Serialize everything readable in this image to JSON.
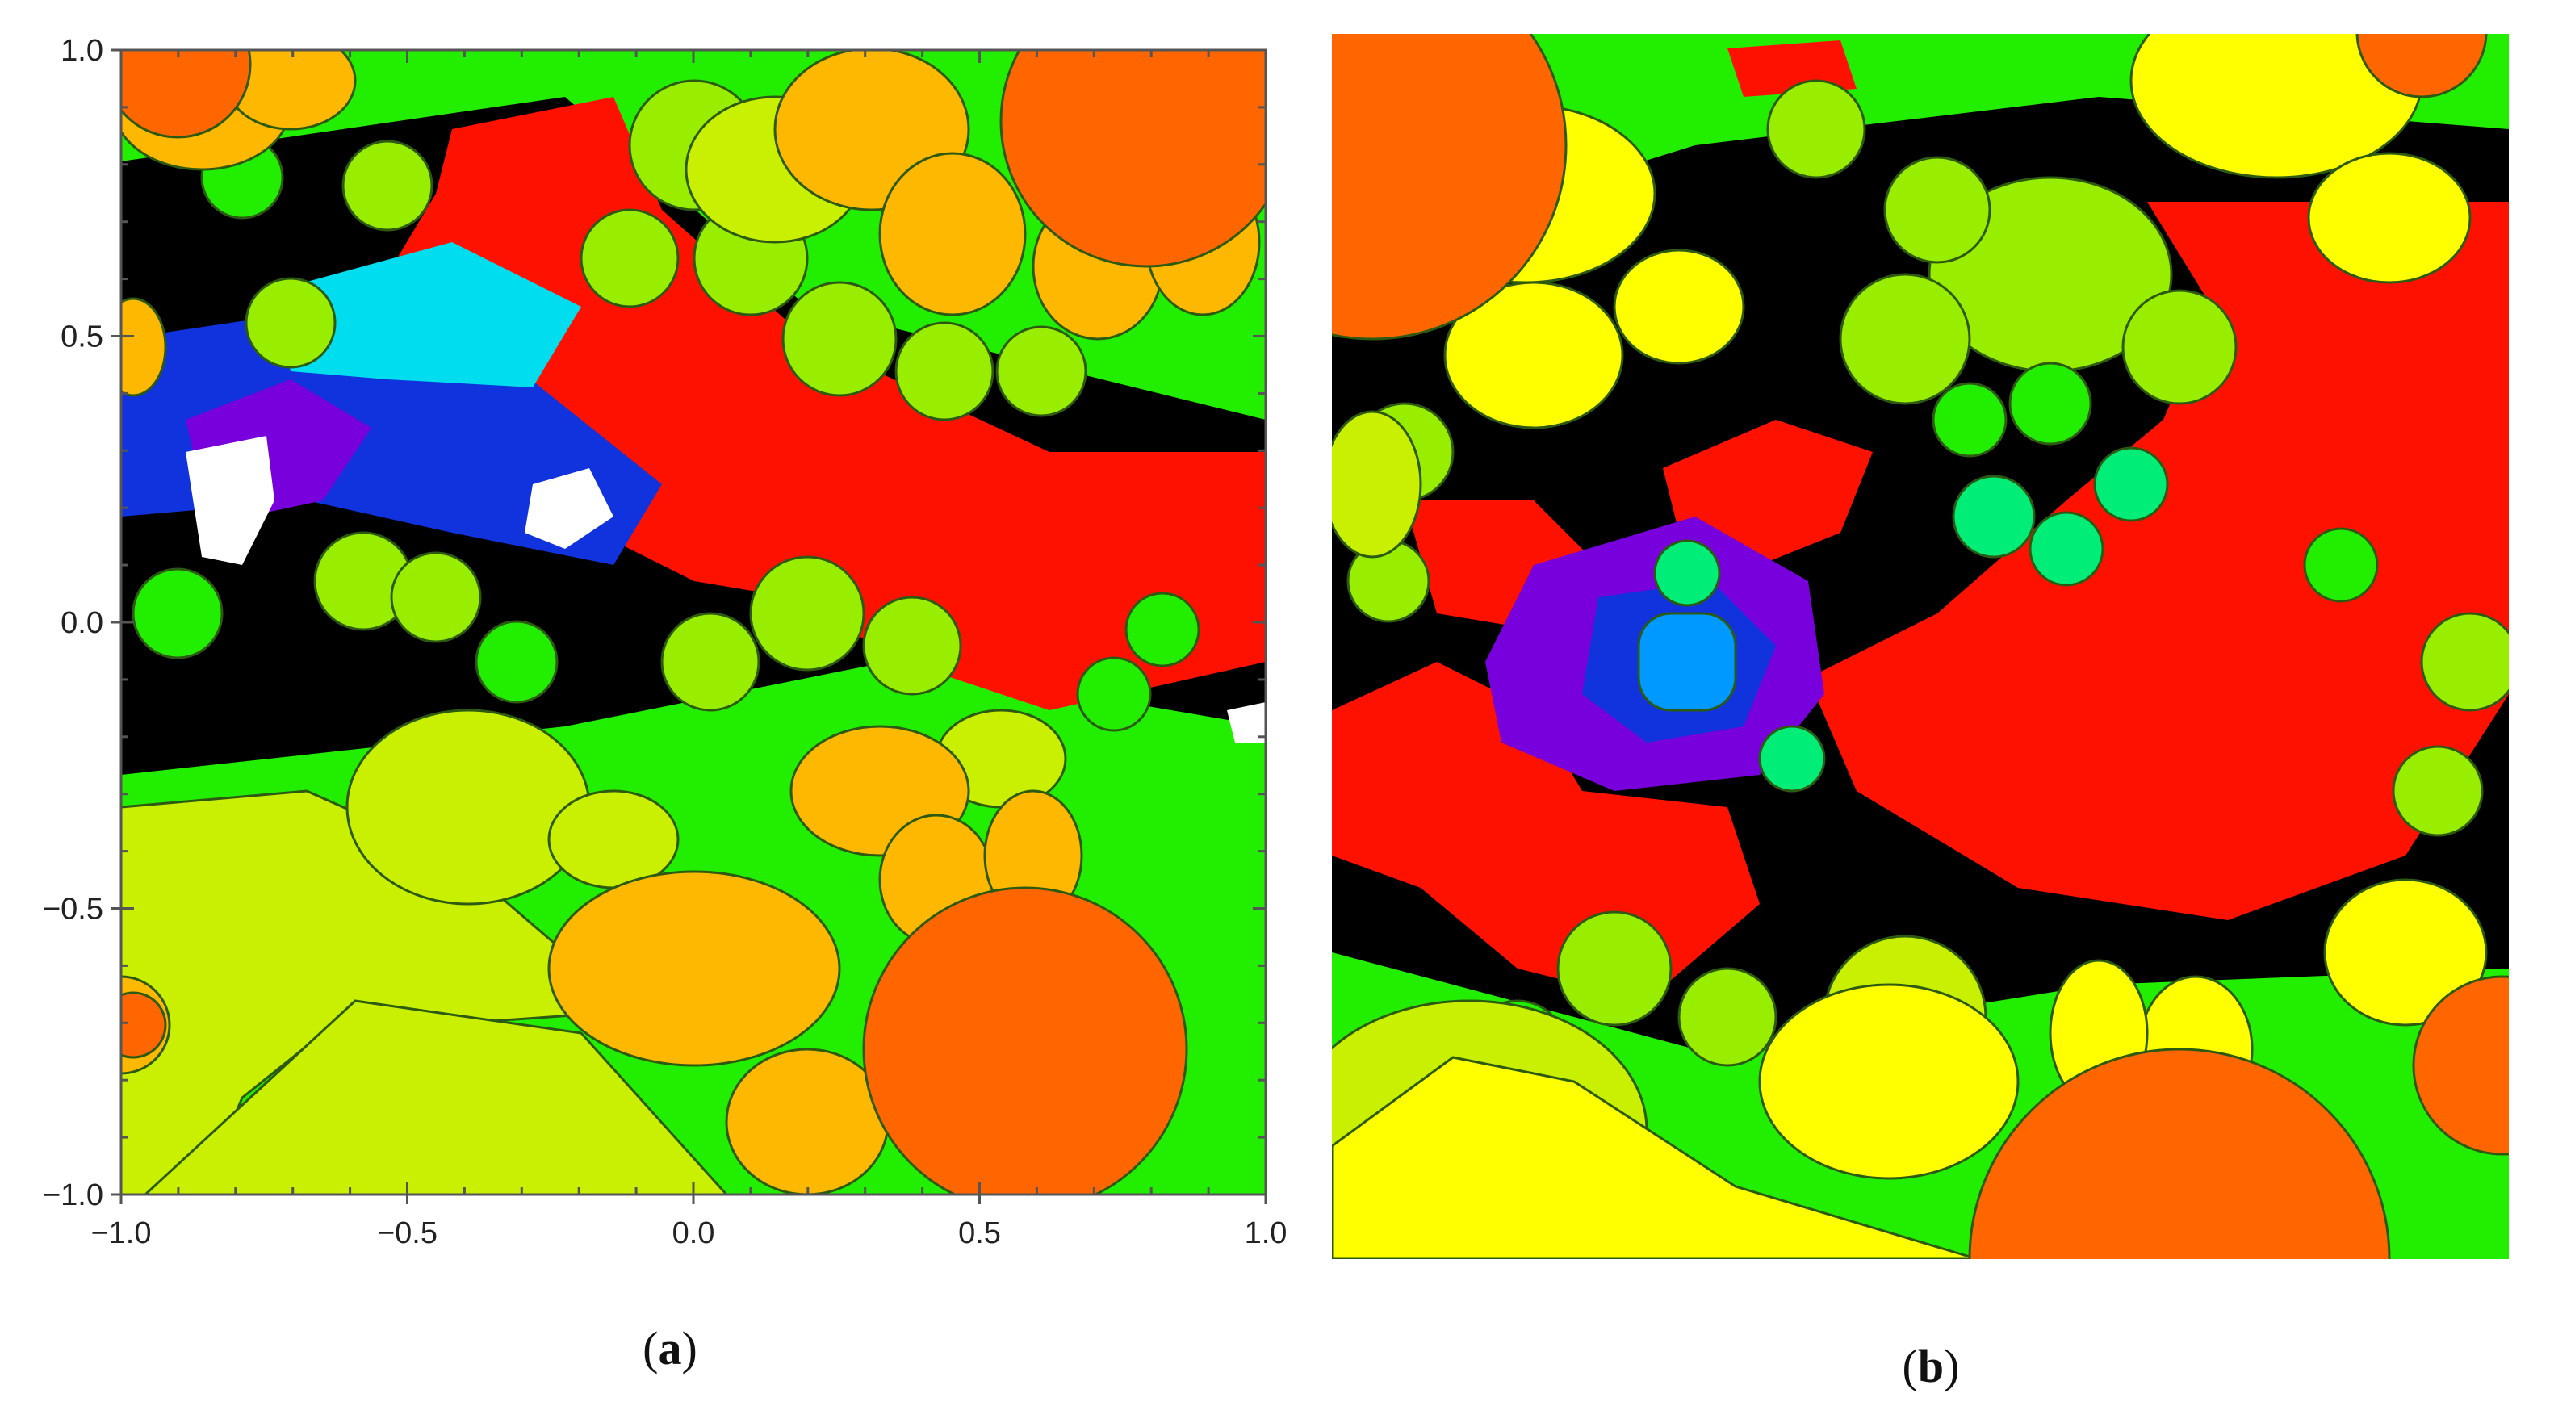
{
  "figure": {
    "panels": [
      {
        "id": "a",
        "caption_open": "(",
        "caption_letter": "a",
        "caption_close": ")",
        "x_ticks": [
          "−1.0",
          "−0.5",
          "0.0",
          "0.5",
          "1.0"
        ],
        "y_ticks": [
          "1.0",
          "0.5",
          "0.0",
          "−0.5",
          "−1.0"
        ],
        "x_range": [
          -1,
          1
        ],
        "y_range": [
          -1,
          1
        ],
        "has_axes": true
      },
      {
        "id": "b",
        "caption_open": "(",
        "caption_letter": "b",
        "caption_close": ")",
        "has_axes": false
      }
    ],
    "colors": {
      "red": "#ff1100",
      "orange": "#ff6600",
      "amber": "#ffb800",
      "yellow": "#ffff00",
      "yellow_green": "#c8f000",
      "lime": "#99ee00",
      "green": "#22ee00",
      "spring": "#00ee77",
      "cyan": "#00ddee",
      "blue": "#0099ff",
      "dark_blue": "#1133dd",
      "purple": "#7700dd",
      "black": "#000000",
      "white": "#ffffff"
    }
  }
}
